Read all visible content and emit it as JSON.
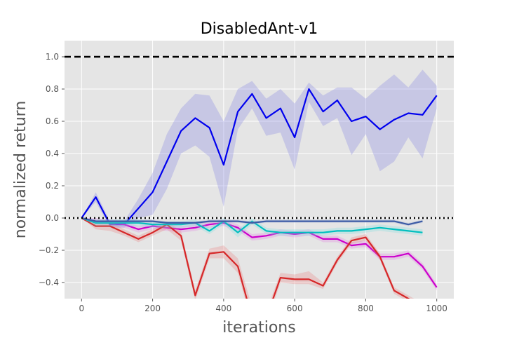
{
  "chart_data": {
    "type": "line",
    "title": "DisabledAnt-v1",
    "xlabel": "iterations",
    "ylabel": "normalized return",
    "xlim": [
      -48,
      1048
    ],
    "ylim": [
      -0.5,
      1.1
    ],
    "xticks": [
      0,
      200,
      400,
      600,
      800,
      1000
    ],
    "yticks": [
      -0.4,
      -0.2,
      0.0,
      0.2,
      0.4,
      0.6,
      0.8,
      1.0
    ],
    "xtick_labels": [
      "0",
      "200",
      "400",
      "600",
      "800",
      "1000"
    ],
    "ytick_labels": [
      "−0.4",
      "−0.2",
      "0.0",
      "0.2",
      "0.4",
      "0.6",
      "0.8",
      "1.0"
    ],
    "grid": true,
    "background": "#e5e5e5",
    "reference_lines": [
      {
        "y": 1.0,
        "style": "dashed",
        "color": "#000000"
      },
      {
        "y": 0.0,
        "style": "dotted",
        "color": "#000000"
      }
    ],
    "series": [
      {
        "color": "#0000ee",
        "band_color": "#8080e0",
        "x": [
          0,
          40,
          80,
          120,
          160,
          200,
          240,
          280,
          320,
          360,
          400,
          440,
          480,
          520,
          560,
          600,
          640,
          680,
          720,
          760,
          800,
          840,
          880,
          920,
          960,
          1000
        ],
        "y": [
          0.0,
          0.13,
          -0.04,
          -0.04,
          0.06,
          0.16,
          0.35,
          0.54,
          0.62,
          0.56,
          0.33,
          0.66,
          0.77,
          0.62,
          0.68,
          0.5,
          0.8,
          0.66,
          0.73,
          0.6,
          0.63,
          0.55,
          0.61,
          0.65,
          0.64,
          0.76
        ],
        "lower": [
          0.0,
          0.1,
          -0.06,
          -0.06,
          0.0,
          0.02,
          0.18,
          0.4,
          0.45,
          0.38,
          0.07,
          0.55,
          0.68,
          0.51,
          0.53,
          0.3,
          0.72,
          0.57,
          0.62,
          0.39,
          0.52,
          0.29,
          0.35,
          0.5,
          0.37,
          0.68
        ],
        "upper": [
          0.0,
          0.16,
          -0.02,
          -0.02,
          0.12,
          0.28,
          0.52,
          0.68,
          0.77,
          0.76,
          0.6,
          0.8,
          0.85,
          0.74,
          0.8,
          0.71,
          0.84,
          0.76,
          0.81,
          0.81,
          0.74,
          0.82,
          0.89,
          0.81,
          0.92,
          0.82
        ]
      },
      {
        "color": "#cc00cc",
        "band_color": "#e080e0",
        "x": [
          0,
          40,
          80,
          120,
          160,
          200,
          240,
          280,
          320,
          360,
          400,
          440,
          480,
          520,
          560,
          600,
          640,
          680,
          720,
          760,
          800,
          840,
          880,
          920,
          960,
          1000
        ],
        "y": [
          0.0,
          -0.02,
          -0.03,
          -0.04,
          -0.07,
          -0.05,
          -0.06,
          -0.07,
          -0.06,
          -0.04,
          -0.03,
          -0.06,
          -0.12,
          -0.11,
          -0.09,
          -0.1,
          -0.09,
          -0.13,
          -0.13,
          -0.17,
          -0.16,
          -0.24,
          -0.24,
          -0.22,
          -0.3,
          -0.43
        ],
        "lower": [
          0.0,
          -0.04,
          -0.05,
          -0.06,
          -0.09,
          -0.07,
          -0.08,
          -0.09,
          -0.08,
          -0.06,
          -0.05,
          -0.08,
          -0.14,
          -0.13,
          -0.11,
          -0.12,
          -0.11,
          -0.15,
          -0.15,
          -0.19,
          -0.18,
          -0.26,
          -0.26,
          -0.24,
          -0.32,
          -0.45
        ],
        "upper": [
          0.0,
          0.0,
          -0.01,
          -0.02,
          -0.05,
          -0.03,
          -0.04,
          -0.05,
          -0.04,
          -0.02,
          -0.01,
          -0.04,
          -0.1,
          -0.09,
          -0.07,
          -0.08,
          -0.07,
          -0.11,
          -0.11,
          -0.15,
          -0.14,
          -0.22,
          -0.22,
          -0.2,
          -0.28,
          -0.41
        ]
      },
      {
        "color": "#d62728",
        "band_color": "#e88080",
        "x": [
          0,
          40,
          80,
          120,
          160,
          200,
          240,
          280,
          320,
          360,
          400,
          440,
          480,
          520,
          560,
          600,
          640,
          680,
          720,
          760,
          800,
          840,
          880,
          920,
          960,
          1000
        ],
        "y": [
          0.0,
          -0.05,
          -0.05,
          -0.09,
          -0.13,
          -0.09,
          -0.04,
          -0.11,
          -0.48,
          -0.22,
          -0.21,
          -0.3,
          -0.62,
          -0.62,
          -0.37,
          -0.38,
          -0.38,
          -0.42,
          -0.26,
          -0.14,
          -0.12,
          -0.24,
          -0.45,
          -0.5,
          -0.55,
          -0.55
        ],
        "lower": [
          0.0,
          -0.07,
          -0.08,
          -0.11,
          -0.15,
          -0.11,
          -0.07,
          -0.14,
          -0.51,
          -0.25,
          -0.25,
          -0.34,
          -0.66,
          -0.66,
          -0.4,
          -0.41,
          -0.41,
          -0.44,
          -0.28,
          -0.16,
          -0.14,
          -0.26,
          -0.47,
          -0.52,
          -0.57,
          -0.57
        ],
        "upper": [
          0.0,
          -0.03,
          -0.02,
          -0.07,
          -0.11,
          -0.07,
          -0.02,
          -0.08,
          -0.45,
          -0.19,
          -0.17,
          -0.25,
          -0.55,
          -0.58,
          -0.34,
          -0.35,
          -0.33,
          -0.4,
          -0.24,
          -0.12,
          -0.1,
          -0.22,
          -0.43,
          -0.48,
          -0.53,
          -0.53
        ]
      },
      {
        "color": "#00bfbf",
        "band_color": "#80dfdf",
        "x": [
          0,
          40,
          80,
          120,
          160,
          200,
          240,
          280,
          320,
          360,
          400,
          440,
          480,
          520,
          560,
          600,
          640,
          680,
          720,
          760,
          800,
          840,
          880,
          920,
          960
        ],
        "y": [
          0.0,
          -0.03,
          -0.03,
          -0.03,
          -0.03,
          -0.04,
          -0.04,
          -0.04,
          -0.03,
          -0.08,
          -0.02,
          -0.09,
          -0.02,
          -0.08,
          -0.09,
          -0.09,
          -0.09,
          -0.09,
          -0.08,
          -0.08,
          -0.07,
          -0.06,
          -0.07,
          -0.08,
          -0.09
        ],
        "lower": [
          0.0,
          -0.05,
          -0.05,
          -0.05,
          -0.05,
          -0.06,
          -0.06,
          -0.06,
          -0.05,
          -0.1,
          -0.04,
          -0.12,
          -0.04,
          -0.1,
          -0.11,
          -0.11,
          -0.11,
          -0.11,
          -0.1,
          -0.1,
          -0.09,
          -0.08,
          -0.09,
          -0.1,
          -0.11
        ],
        "upper": [
          0.0,
          -0.01,
          -0.01,
          -0.01,
          -0.01,
          -0.02,
          -0.02,
          -0.02,
          -0.01,
          -0.06,
          0.0,
          -0.07,
          0.0,
          -0.06,
          -0.07,
          -0.07,
          -0.07,
          -0.07,
          -0.06,
          -0.06,
          -0.05,
          -0.04,
          -0.05,
          -0.06,
          -0.07
        ]
      },
      {
        "color": "#3b5ba5",
        "band_color": "#9aaad0",
        "x": [
          0,
          40,
          80,
          120,
          160,
          200,
          240,
          280,
          320,
          360,
          400,
          440,
          480,
          520,
          560,
          600,
          640,
          680,
          720,
          760,
          800,
          840,
          880,
          920,
          960
        ],
        "y": [
          0.0,
          -0.02,
          -0.02,
          -0.02,
          -0.02,
          -0.02,
          -0.03,
          -0.03,
          -0.03,
          -0.02,
          -0.02,
          -0.02,
          -0.03,
          -0.02,
          -0.02,
          -0.02,
          -0.02,
          -0.02,
          -0.02,
          -0.02,
          -0.02,
          -0.02,
          -0.02,
          -0.04,
          -0.02
        ],
        "lower": [
          0.0,
          -0.03,
          -0.03,
          -0.03,
          -0.03,
          -0.03,
          -0.04,
          -0.04,
          -0.04,
          -0.03,
          -0.03,
          -0.03,
          -0.04,
          -0.03,
          -0.03,
          -0.03,
          -0.03,
          -0.03,
          -0.03,
          -0.03,
          -0.03,
          -0.03,
          -0.03,
          -0.05,
          -0.03
        ],
        "upper": [
          0.0,
          -0.01,
          -0.01,
          -0.01,
          -0.01,
          -0.01,
          -0.02,
          -0.02,
          -0.02,
          -0.01,
          -0.01,
          -0.01,
          -0.02,
          -0.01,
          -0.01,
          -0.01,
          -0.01,
          -0.01,
          -0.01,
          -0.01,
          -0.01,
          -0.01,
          -0.01,
          -0.03,
          -0.01
        ]
      }
    ]
  }
}
